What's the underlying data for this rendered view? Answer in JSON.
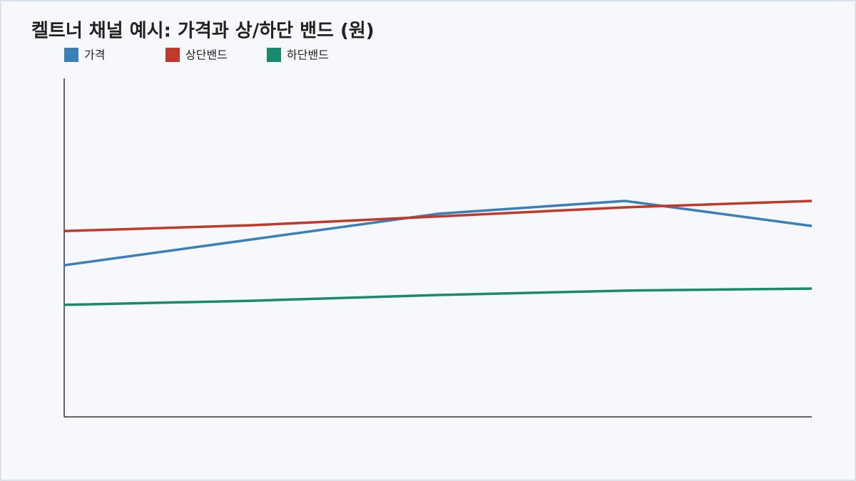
{
  "chart_data": {
    "type": "line",
    "title": "켈트너 채널 예시: 가격과 상/하단 밴드 (원)",
    "series": [
      {
        "name": "가격",
        "color": "#3a7fb8",
        "values": [
          44.8,
          52.4,
          60.0,
          63.8,
          56.4
        ]
      },
      {
        "name": "상단밴드",
        "color": "#c0392b",
        "values": [
          54.9,
          56.6,
          59.2,
          61.9,
          63.8
        ]
      },
      {
        "name": "하단밴드",
        "color": "#1a8a6e",
        "values": [
          33.1,
          34.3,
          36.0,
          37.3,
          37.9
        ]
      }
    ],
    "ylim": [
      0,
      100
    ],
    "legend": "top-left"
  }
}
